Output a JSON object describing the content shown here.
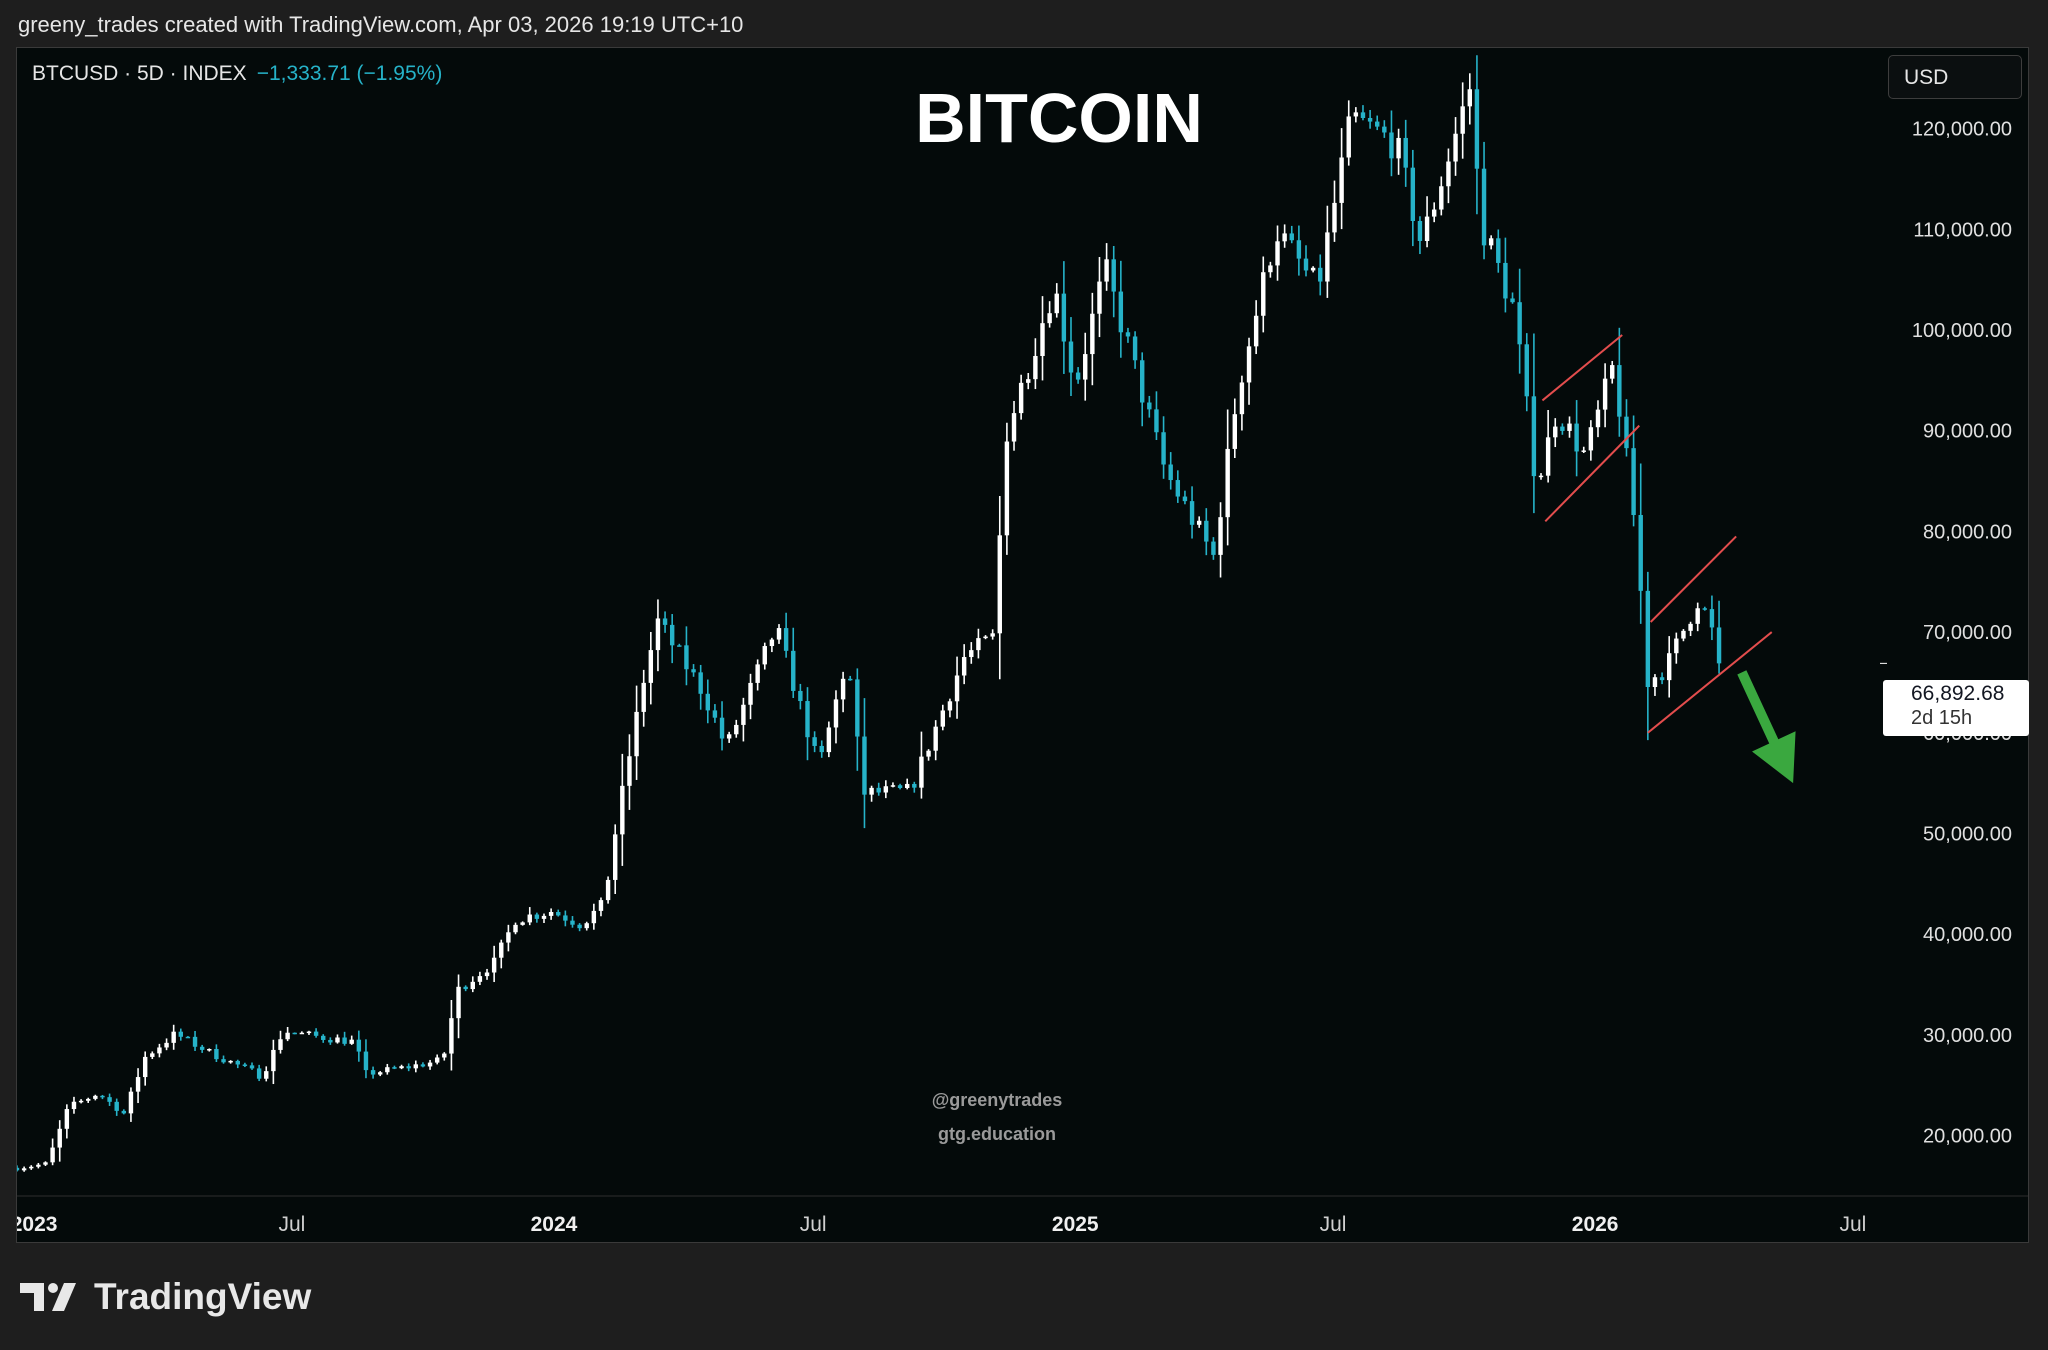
{
  "caption": "greeny_trades created with TradingView.com, Apr 03, 2026 19:19 UTC+10",
  "symbol": {
    "name": "BTCUSD · 5D · INDEX",
    "change": "−1,333.71 (−1.95%)"
  },
  "currency_button": "USD",
  "last_price": {
    "value": "66,892.68",
    "countdown": "2d 15h"
  },
  "watermarks": [
    "@greenytrades",
    "gtg.education"
  ],
  "footer": {
    "brand": "TradingView"
  },
  "colors": {
    "background": "#040a0a",
    "up_candle": "#ffffff",
    "down_candle": "#26b3c9",
    "channel_lines": "#e34d4d",
    "arrow": "#3aa83f"
  },
  "chart_data": {
    "type": "candlestick",
    "title": "BITCOIN",
    "y_axis": {
      "ticks": [
        20000,
        30000,
        40000,
        50000,
        60000,
        70000,
        80000,
        90000,
        100000,
        110000,
        120000
      ],
      "tick_labels": [
        "20,000.00",
        "30,000.00",
        "40,000.00",
        "50,000.00",
        "60,000.00",
        "70,000.00",
        "80,000.00",
        "90,000.00",
        "100,000.00",
        "110,000.00",
        "120,000.00"
      ],
      "range": [
        14000,
        128000
      ],
      "position": "right"
    },
    "x_axis": {
      "range": [
        "2022-12-20",
        "2026-07-20"
      ],
      "ticks": [
        {
          "label": "2023",
          "date": "2023-01-01",
          "bold": true
        },
        {
          "label": "Jul",
          "date": "2023-07-01",
          "bold": false
        },
        {
          "label": "2024",
          "date": "2024-01-01",
          "bold": true
        },
        {
          "label": "Jul",
          "date": "2024-07-01",
          "bold": false
        },
        {
          "label": "2025",
          "date": "2025-01-01",
          "bold": true
        },
        {
          "label": "Jul",
          "date": "2025-07-01",
          "bold": false
        },
        {
          "label": "2026",
          "date": "2026-01-01",
          "bold": true
        },
        {
          "label": "Jul",
          "date": "2026-07-01",
          "bold": false
        }
      ]
    },
    "close_path": [
      [
        "2022-12-20",
        16800
      ],
      [
        "2023-01-10",
        17200
      ],
      [
        "2023-01-25",
        22800
      ],
      [
        "2023-02-15",
        24200
      ],
      [
        "2023-03-05",
        22200
      ],
      [
        "2023-03-20",
        27800
      ],
      [
        "2023-04-10",
        30100
      ],
      [
        "2023-05-05",
        28200
      ],
      [
        "2023-06-10",
        25900
      ],
      [
        "2023-06-25",
        30400
      ],
      [
        "2023-07-20",
        29800
      ],
      [
        "2023-08-15",
        29300
      ],
      [
        "2023-08-20",
        26100
      ],
      [
        "2023-09-20",
        26800
      ],
      [
        "2023-10-15",
        27500
      ],
      [
        "2023-10-25",
        34400
      ],
      [
        "2023-11-20",
        37200
      ],
      [
        "2023-12-05",
        41500
      ],
      [
        "2023-12-30",
        42300
      ],
      [
        "2024-01-20",
        41000
      ],
      [
        "2024-02-05",
        43000
      ],
      [
        "2024-02-15",
        51800
      ],
      [
        "2024-03-05",
        66000
      ],
      [
        "2024-03-14",
        71000
      ],
      [
        "2024-04-15",
        64000
      ],
      [
        "2024-05-01",
        58500
      ],
      [
        "2024-06-05",
        70500
      ],
      [
        "2024-07-05",
        56500
      ],
      [
        "2024-07-25",
        67500
      ],
      [
        "2024-08-05",
        54000
      ],
      [
        "2024-09-07",
        54200
      ],
      [
        "2024-10-15",
        67500
      ],
      [
        "2024-11-05",
        69500
      ],
      [
        "2024-11-13",
        89500
      ],
      [
        "2024-12-17",
        104500
      ],
      [
        "2025-01-01",
        94500
      ],
      [
        "2025-01-22",
        106000
      ],
      [
        "2025-02-10",
        97000
      ],
      [
        "2025-03-05",
        86000
      ],
      [
        "2025-04-08",
        77500
      ],
      [
        "2025-04-25",
        94000
      ],
      [
        "2025-05-22",
        110000
      ],
      [
        "2025-06-20",
        104000
      ],
      [
        "2025-07-14",
        121000
      ],
      [
        "2025-08-14",
        118500
      ],
      [
        "2025-09-01",
        108500
      ],
      [
        "2025-10-06",
        124500
      ],
      [
        "2025-10-12",
        111000
      ],
      [
        "2025-11-05",
        102000
      ],
      [
        "2025-11-21",
        84500
      ],
      [
        "2025-12-05",
        92000
      ],
      [
        "2025-12-25",
        87500
      ],
      [
        "2026-01-14",
        96500
      ],
      [
        "2026-01-31",
        78500
      ],
      [
        "2026-02-06",
        65000
      ],
      [
        "2026-02-20",
        66500
      ],
      [
        "2026-03-05",
        70500
      ],
      [
        "2026-03-15",
        73500
      ],
      [
        "2026-04-01",
        66900
      ]
    ],
    "last_close": 66892.68,
    "annotations": [
      {
        "type": "channel_line",
        "from": [
          "2025-11-25",
          93000
        ],
        "to": [
          "2026-01-20",
          99500
        ]
      },
      {
        "type": "channel_line",
        "from": [
          "2025-11-27",
          81000
        ],
        "to": [
          "2026-02-01",
          90500
        ]
      },
      {
        "type": "channel_line",
        "from": [
          "2026-02-09",
          71000
        ],
        "to": [
          "2026-04-10",
          79500
        ]
      },
      {
        "type": "channel_line",
        "from": [
          "2026-02-07",
          60000
        ],
        "to": [
          "2026-05-05",
          70000
        ]
      },
      {
        "type": "arrow",
        "from": [
          "2026-04-14",
          66000
        ],
        "to": [
          "2026-05-20",
          55000
        ]
      }
    ]
  }
}
